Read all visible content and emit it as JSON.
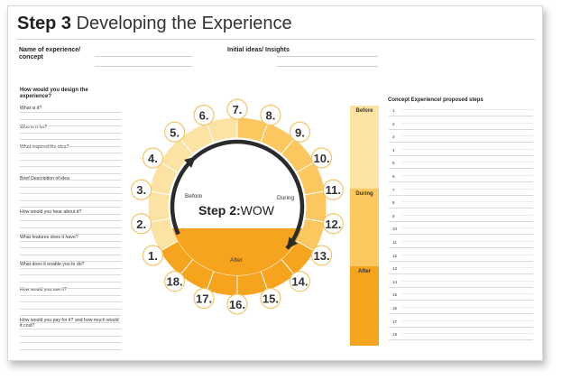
{
  "title": {
    "step": "Step 3",
    "rest": "Developing the Experience"
  },
  "header": {
    "name_label": "Name of experience/ concept",
    "ideas_label": "Initial ideas/ Insights"
  },
  "design": {
    "heading": "How would you design the experience?",
    "questions": [
      "What is it?",
      "Who is it for?",
      "What inspired the idea?",
      "Brief Description of idea",
      "How would you hear about it?",
      "What features does it have?",
      "What does it enable you to do?",
      "How would you use it?",
      "How would you pay for it? and how much would it cost?"
    ]
  },
  "wheel": {
    "center_bold": "Step 2:",
    "center_light": "WOW",
    "before": "Before",
    "during": "During",
    "after": "After",
    "numbers": [
      "1.",
      "2.",
      "3.",
      "4.",
      "5.",
      "6.",
      "7.",
      "8.",
      "9.",
      "10.",
      "11.",
      "12.",
      "13.",
      "14.",
      "15.",
      "16.",
      "17.",
      "18."
    ]
  },
  "phases": {
    "before": "Before",
    "during": "During",
    "after": "After"
  },
  "steps": {
    "heading": "Concept Experience/ proposed steps",
    "numbers": [
      "1",
      "2",
      "3",
      "4",
      "5",
      "6",
      "7",
      "8",
      "9",
      "10",
      "11",
      "12",
      "13",
      "14",
      "15",
      "16",
      "17",
      "18"
    ]
  },
  "colors": {
    "light_orange": "#fde3a3",
    "mid_orange": "#fbc75e",
    "dark_orange": "#f6a31d",
    "ring_dark": "#2b2b2b"
  }
}
